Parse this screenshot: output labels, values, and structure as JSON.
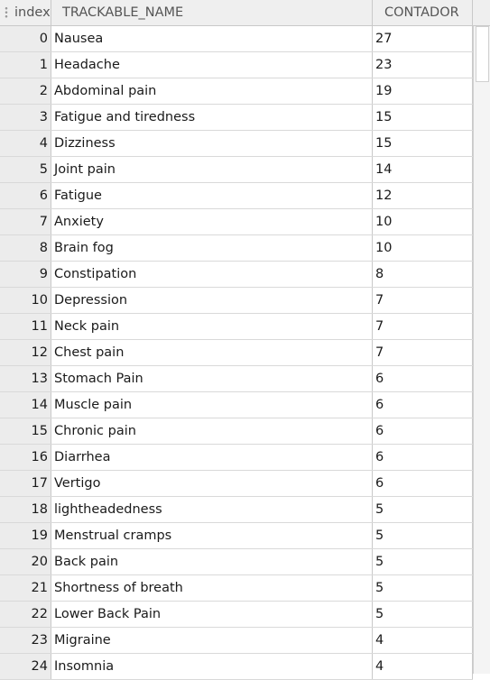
{
  "columns": {
    "index": "index",
    "name": "TRACKABLE_NAME",
    "count": "CONTADOR"
  },
  "rows": [
    {
      "index": "0",
      "name": "Nausea",
      "count": "27"
    },
    {
      "index": "1",
      "name": "Headache",
      "count": "23"
    },
    {
      "index": "2",
      "name": "Abdominal pain",
      "count": "19"
    },
    {
      "index": "3",
      "name": "Fatigue and tiredness",
      "count": "15"
    },
    {
      "index": "4",
      "name": "Dizziness",
      "count": "15"
    },
    {
      "index": "5",
      "name": "Joint pain",
      "count": "14"
    },
    {
      "index": "6",
      "name": "Fatigue",
      "count": "12"
    },
    {
      "index": "7",
      "name": "Anxiety",
      "count": "10"
    },
    {
      "index": "8",
      "name": "Brain fog",
      "count": "10"
    },
    {
      "index": "9",
      "name": "Constipation",
      "count": "8"
    },
    {
      "index": "10",
      "name": "Depression",
      "count": "7"
    },
    {
      "index": "11",
      "name": "Neck pain",
      "count": "7"
    },
    {
      "index": "12",
      "name": "Chest pain",
      "count": "7"
    },
    {
      "index": "13",
      "name": "Stomach Pain",
      "count": "6"
    },
    {
      "index": "14",
      "name": "Muscle pain",
      "count": "6"
    },
    {
      "index": "15",
      "name": "Chronic pain",
      "count": "6"
    },
    {
      "index": "16",
      "name": "Diarrhea",
      "count": "6"
    },
    {
      "index": "17",
      "name": "Vertigo",
      "count": "6"
    },
    {
      "index": "18",
      "name": "lightheadedness",
      "count": "5"
    },
    {
      "index": "19",
      "name": "Menstrual cramps",
      "count": "5"
    },
    {
      "index": "20",
      "name": "Back pain",
      "count": "5"
    },
    {
      "index": "21",
      "name": "Shortness of breath",
      "count": "5"
    },
    {
      "index": "22",
      "name": "Lower Back Pain",
      "count": "5"
    },
    {
      "index": "23",
      "name": "Migraine",
      "count": "4"
    },
    {
      "index": "24",
      "name": "Insomnia",
      "count": "4"
    }
  ]
}
